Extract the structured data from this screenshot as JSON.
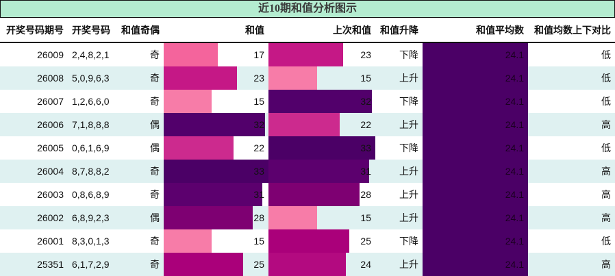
{
  "title": "近10期和值分析图示",
  "headers": [
    "开奖号码期号",
    "开奖号码",
    "和值奇偶",
    "和值",
    "上次和值",
    "和值升降",
    "和值平均数",
    "和值均数上下对比"
  ],
  "rows": [
    {
      "issue": "26009",
      "numbers": "2,4,8,2,1",
      "parity": "奇",
      "sum": "17",
      "sum_pct": "51.5%",
      "sum_color": "#f4649c",
      "prev": "23",
      "prev_pct": "69.7%",
      "prev_color": "#c51886",
      "trend": "下降",
      "avg": "24.1",
      "compare": "低"
    },
    {
      "issue": "26008",
      "numbers": "5,0,9,6,3",
      "parity": "奇",
      "sum": "23",
      "sum_pct": "69.7%",
      "sum_color": "#c51886",
      "prev": "15",
      "prev_pct": "45.5%",
      "prev_color": "#f77ca8",
      "trend": "上升",
      "avg": "24.1",
      "compare": "低"
    },
    {
      "issue": "26007",
      "numbers": "1,2,6,6,0",
      "parity": "奇",
      "sum": "15",
      "sum_pct": "45.5%",
      "sum_color": "#f77ca8",
      "prev": "32",
      "prev_pct": "97%",
      "prev_color": "#52006b",
      "trend": "下降",
      "avg": "24.1",
      "compare": "低"
    },
    {
      "issue": "26006",
      "numbers": "7,1,8,8,8",
      "parity": "偶",
      "sum": "32",
      "sum_pct": "97%",
      "sum_color": "#52006b",
      "prev": "22",
      "prev_pct": "66.7%",
      "prev_color": "#cc2a8e",
      "trend": "上升",
      "avg": "24.1",
      "compare": "高"
    },
    {
      "issue": "26005",
      "numbers": "0,6,1,6,9",
      "parity": "偶",
      "sum": "22",
      "sum_pct": "66.7%",
      "sum_color": "#cc2a8e",
      "prev": "33",
      "prev_pct": "100%",
      "prev_color": "#4b0066",
      "trend": "下降",
      "avg": "24.1",
      "compare": "低"
    },
    {
      "issue": "26004",
      "numbers": "8,7,8,8,2",
      "parity": "奇",
      "sum": "33",
      "sum_pct": "100%",
      "sum_color": "#4b0066",
      "prev": "31",
      "prev_pct": "94%",
      "prev_color": "#5c006e",
      "trend": "上升",
      "avg": "24.1",
      "compare": "高"
    },
    {
      "issue": "26003",
      "numbers": "0,8,6,8,9",
      "parity": "奇",
      "sum": "31",
      "sum_pct": "94%",
      "sum_color": "#5c006e",
      "prev": "28",
      "prev_pct": "85%",
      "prev_color": "#7e0072",
      "trend": "上升",
      "avg": "24.1",
      "compare": "高"
    },
    {
      "issue": "26002",
      "numbers": "6,8,9,2,3",
      "parity": "偶",
      "sum": "28",
      "sum_pct": "85%",
      "sum_color": "#7e0072",
      "prev": "15",
      "prev_pct": "45.5%",
      "prev_color": "#f77ca8",
      "trend": "上升",
      "avg": "24.1",
      "compare": "高"
    },
    {
      "issue": "26001",
      "numbers": "8,3,0,1,3",
      "parity": "奇",
      "sum": "15",
      "sum_pct": "45.5%",
      "sum_color": "#f77ca8",
      "prev": "25",
      "prev_pct": "75.8%",
      "prev_color": "#aa007a",
      "trend": "下降",
      "avg": "24.1",
      "compare": "低"
    },
    {
      "issue": "25351",
      "numbers": "6,1,7,2,9",
      "parity": "奇",
      "sum": "25",
      "sum_pct": "75.8%",
      "sum_color": "#aa007a",
      "prev": "24",
      "prev_pct": "72.7%",
      "prev_color": "#b30a80",
      "trend": "上升",
      "avg": "24.1",
      "compare": "高"
    }
  ],
  "colors": {
    "title_bg": "#b4ecd0",
    "alt_row_bg": "#dff1f1",
    "avg_bg": "#4b0066"
  }
}
